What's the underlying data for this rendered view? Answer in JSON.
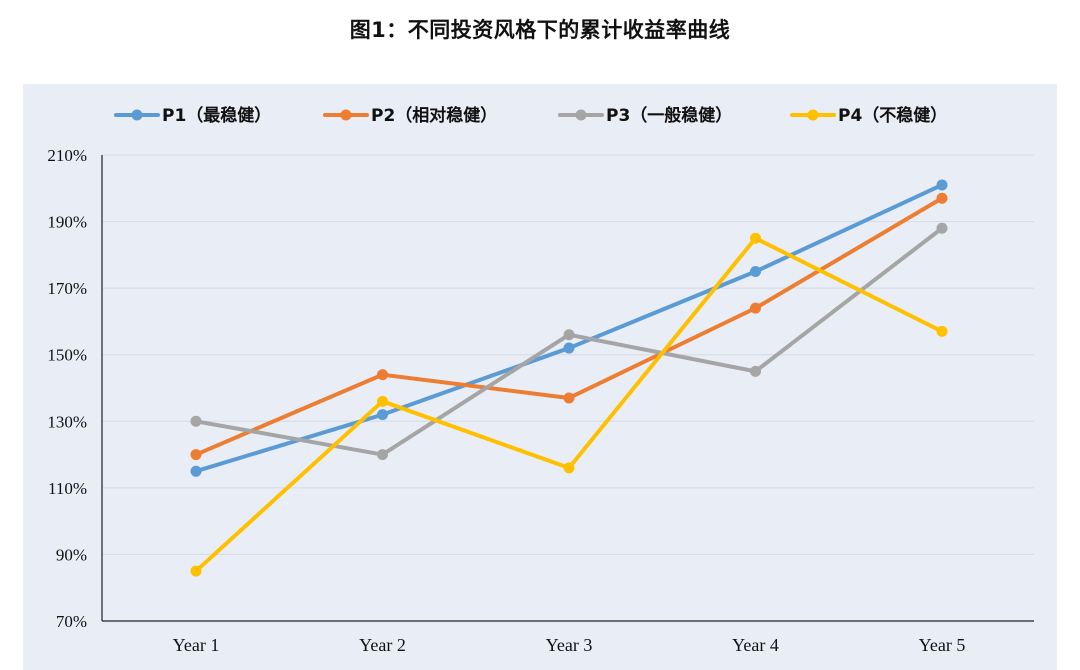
{
  "title": "图1：不同投资风格下的累计收益率曲线",
  "chart_data": {
    "type": "line",
    "title": "图1：不同投资风格下的累计收益率曲线",
    "categories": [
      "Year 1",
      "Year 2",
      "Year 3",
      "Year 4",
      "Year 5"
    ],
    "series": [
      {
        "name": "P1（最稳健）",
        "color": "#5b9bd5",
        "values": [
          115,
          132,
          152,
          175,
          201
        ]
      },
      {
        "name": "P2（相对稳健）",
        "color": "#ed7d31",
        "values": [
          120,
          144,
          137,
          164,
          197
        ]
      },
      {
        "name": "P3（一般稳健）",
        "color": "#a5a5a5",
        "values": [
          130,
          120,
          156,
          145,
          188
        ]
      },
      {
        "name": "P4（不稳健）",
        "color": "#ffc000",
        "values": [
          85,
          136,
          116,
          185,
          157
        ]
      }
    ],
    "y_ticks": [
      "70%",
      "90%",
      "110%",
      "130%",
      "150%",
      "170%",
      "190%",
      "210%"
    ],
    "ylim": [
      70,
      210
    ],
    "y_unit": "%",
    "grid": true,
    "legend_position": "top",
    "background": "#e9edf5",
    "gridline_color": "#d6dbe4"
  }
}
